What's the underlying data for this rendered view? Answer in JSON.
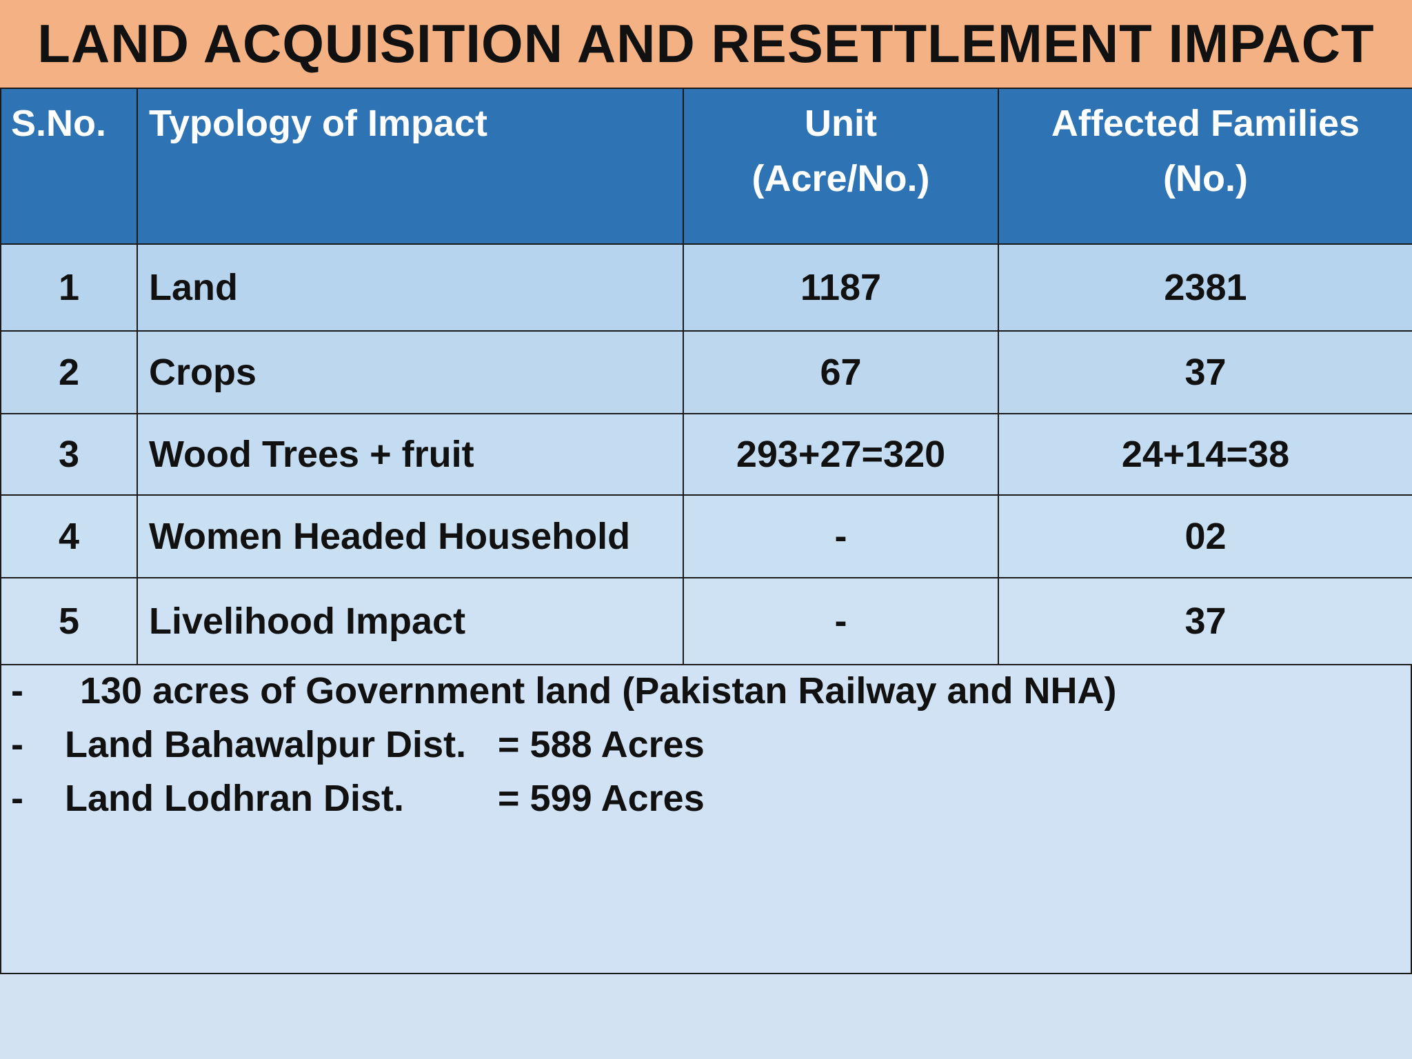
{
  "title": "LAND ACQUISITION AND RESETTLEMENT IMPACT",
  "table": {
    "headers": {
      "sno": "S.No.",
      "type": "Typology of Impact",
      "unit_line1": "Unit",
      "unit_line2": "(Acre/No.)",
      "families_line1": "Affected Families",
      "families_line2": "(No.)"
    },
    "rows": [
      {
        "sno": "1",
        "type": "Land",
        "unit": "1187",
        "families": "2381"
      },
      {
        "sno": "2",
        "type": "Crops",
        "unit": "67",
        "families": "37"
      },
      {
        "sno": "3",
        "type": "Wood Trees + fruit",
        "unit": "293+27=320",
        "families": "24+14=38"
      },
      {
        "sno": "4",
        "type": "Women Headed Household",
        "unit": "-",
        "families": "02"
      },
      {
        "sno": "5",
        "type": "Livelihood Impact",
        "unit": "-",
        "families": "37"
      }
    ]
  },
  "notes": [
    {
      "dash": "-",
      "text": "130 acres of Government land (Pakistan Railway and NHA)"
    },
    {
      "dash": "-",
      "text": "Land Bahawalpur Dist.",
      "value": "= 588 Acres"
    },
    {
      "dash": "-",
      "text": "Land Lodhran Dist.",
      "value": "= 599 Acres"
    }
  ]
}
